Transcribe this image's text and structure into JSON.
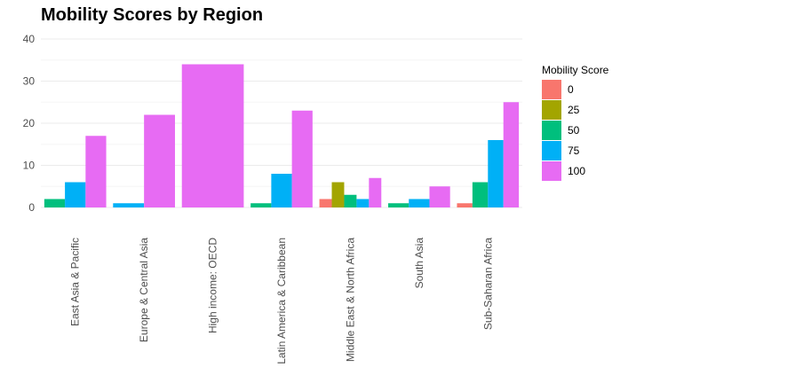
{
  "chart_data": {
    "type": "bar",
    "title": "Mobility Scores by Region",
    "xlabel": "",
    "ylabel": "",
    "ylim": [
      0,
      40
    ],
    "yticks": [
      0,
      10,
      20,
      30,
      40
    ],
    "grid": true,
    "legend_position": "right",
    "legend_title": "Mobility Score",
    "categories": [
      "East Asia & Pacific",
      "Europe & Central Asia",
      "High income: OECD",
      "Latin America & Caribbean",
      "Middle East & North Africa",
      "South Asia",
      "Sub-Saharan Africa"
    ],
    "series": [
      {
        "name": "0",
        "color": "#F8766D",
        "values": [
          null,
          null,
          null,
          null,
          2,
          null,
          1
        ]
      },
      {
        "name": "25",
        "color": "#A3A500",
        "values": [
          null,
          null,
          null,
          null,
          6,
          null,
          null
        ]
      },
      {
        "name": "50",
        "color": "#00BF7D",
        "values": [
          2,
          null,
          null,
          1,
          3,
          1,
          6
        ]
      },
      {
        "name": "75",
        "color": "#00B0F6",
        "values": [
          6,
          1,
          null,
          8,
          2,
          2,
          16
        ]
      },
      {
        "name": "100",
        "color": "#E76BF3",
        "values": [
          17,
          22,
          34,
          23,
          7,
          5,
          25
        ]
      }
    ]
  }
}
